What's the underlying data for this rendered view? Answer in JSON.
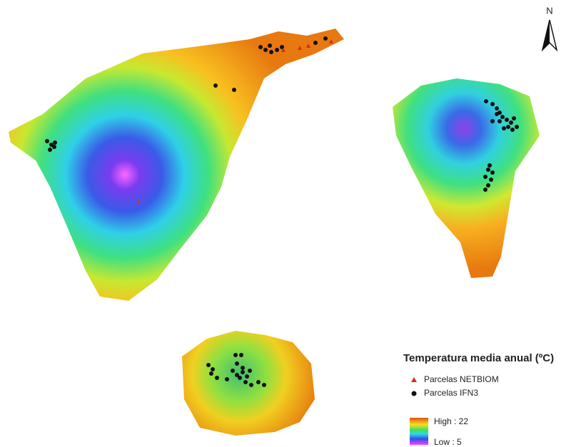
{
  "north": "N",
  "legend": {
    "title": "Temperatura media anual (ºC)",
    "items": [
      "Parcelas NETBIOM",
      "Parcelas IFN3"
    ],
    "high": "High : 22",
    "low": "Low : 5"
  }
}
